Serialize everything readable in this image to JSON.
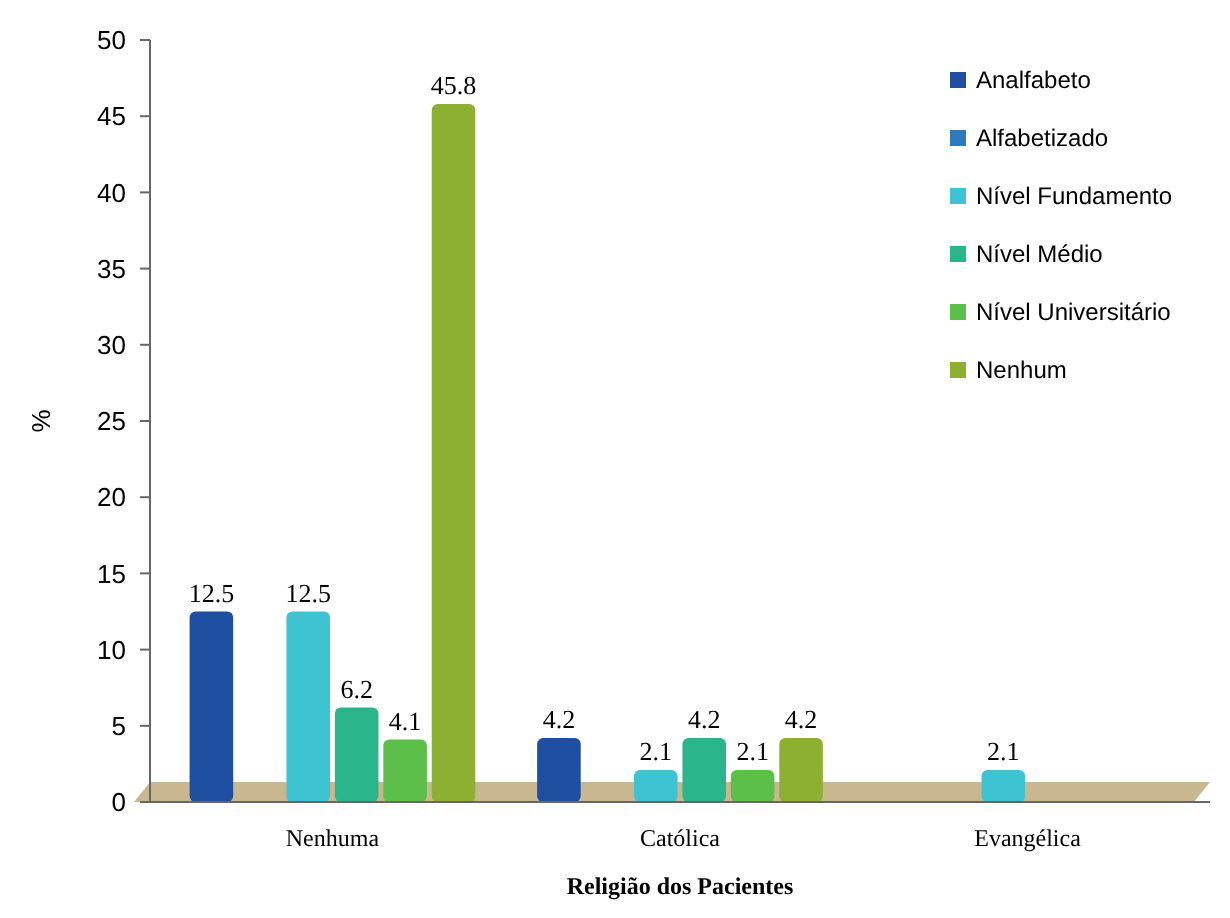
{
  "chart_data": {
    "type": "bar",
    "xlabel": "Religião dos Pacientes",
    "ylabel": "%",
    "categories": [
      "Nenhuma",
      "Católica",
      "Evangélica"
    ],
    "series": [
      {
        "name": "Analfabeto",
        "color": "#1f4fa0",
        "values": [
          12.5,
          4.2,
          null
        ]
      },
      {
        "name": "Alfabetizado",
        "color": "#2d7bbf",
        "values": [
          null,
          null,
          null
        ]
      },
      {
        "name": "Nível Fundamento",
        "color": "#3ec3d3",
        "values": [
          12.5,
          2.1,
          2.1
        ]
      },
      {
        "name": "Nível Médio",
        "color": "#2bb58a",
        "values": [
          6.2,
          4.2,
          null
        ]
      },
      {
        "name": "Nível Universitário",
        "color": "#5cbf4a",
        "values": [
          4.1,
          2.1,
          null
        ]
      },
      {
        "name": "Nenhum",
        "color": "#8db032",
        "values": [
          45.8,
          4.2,
          null
        ]
      }
    ],
    "ylim": [
      0,
      50
    ],
    "yticks": [
      0,
      5,
      10,
      15,
      20,
      25,
      30,
      35,
      40,
      45,
      50
    ],
    "grid": false,
    "legend": "top right",
    "data_labels": true
  }
}
